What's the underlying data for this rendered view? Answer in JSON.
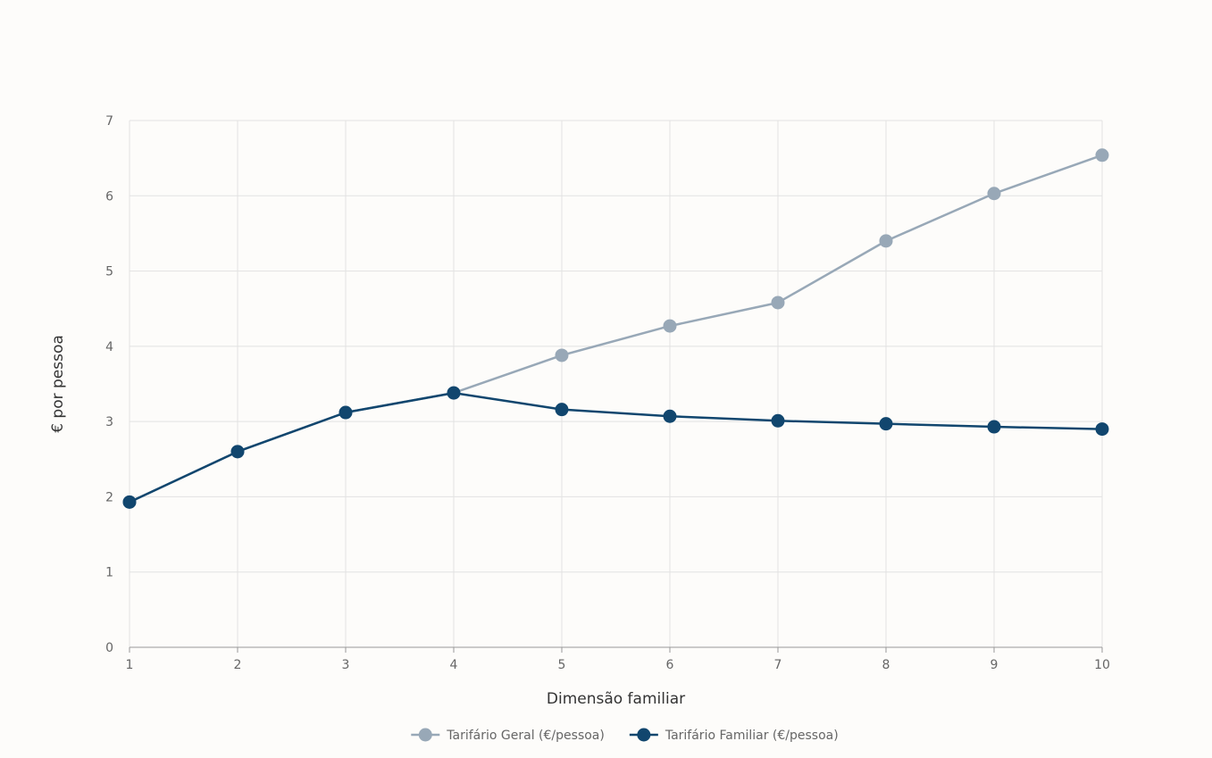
{
  "chart_data": {
    "type": "line",
    "xlabel": "Dimensão familiar",
    "ylabel": "€ por pessoa",
    "x": [
      1,
      2,
      3,
      4,
      5,
      6,
      7,
      8,
      9,
      10
    ],
    "xlim": [
      1,
      10
    ],
    "ylim": [
      0,
      7
    ],
    "yticks": [
      0,
      1,
      2,
      3,
      4,
      5,
      6,
      7
    ],
    "grid": true,
    "legend_position": "bottom-center",
    "series": [
      {
        "name": "Tarifário Geral (€/pessoa)",
        "color": "#98a8b7",
        "values": [
          1.93,
          2.6,
          3.12,
          3.38,
          3.88,
          4.27,
          4.58,
          5.4,
          6.03,
          6.54
        ]
      },
      {
        "name": "Tarifário Familiar (€/pessoa)",
        "color": "#11466e",
        "values": [
          1.93,
          2.6,
          3.12,
          3.38,
          3.16,
          3.07,
          3.01,
          2.97,
          2.93,
          2.9
        ]
      }
    ]
  }
}
